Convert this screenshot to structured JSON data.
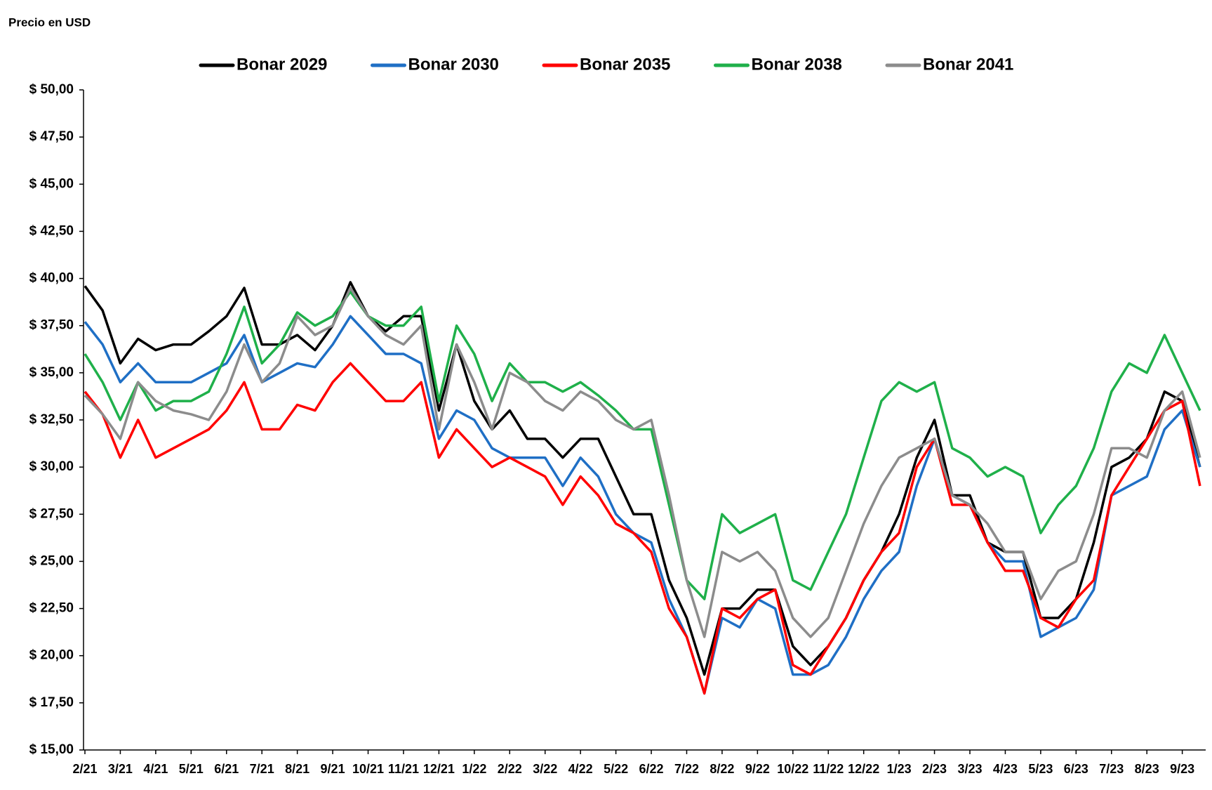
{
  "chart_data": {
    "type": "line",
    "ylabel": "Precio en USD",
    "categories": [
      "2/21",
      null,
      "3/21",
      null,
      "4/21",
      null,
      "5/21",
      null,
      "6/21",
      null,
      "7/21",
      null,
      "8/21",
      null,
      "9/21",
      null,
      "10/21",
      null,
      "11/21",
      null,
      "12/21",
      null,
      "1/22",
      null,
      "2/22",
      null,
      "3/22",
      null,
      "4/22",
      null,
      "5/22",
      null,
      "6/22",
      null,
      "7/22",
      null,
      "8/22",
      null,
      "9/22",
      null,
      "10/22",
      null,
      "11/22",
      null,
      "12/22",
      null,
      "1/23",
      null,
      "2/23",
      null,
      "3/23",
      null,
      "4/23",
      null,
      "5/23",
      null,
      "6/23",
      null,
      "7/23",
      null,
      "8/23",
      null,
      "9/23",
      null
    ],
    "series": [
      {
        "name": "Bonar 2029",
        "color": "#000000",
        "values": [
          39.6,
          38.3,
          35.5,
          36.8,
          36.2,
          36.5,
          36.5,
          37.2,
          38,
          39.5,
          36.5,
          36.5,
          37,
          36.2,
          37.5,
          39.8,
          38,
          37.2,
          38,
          38,
          33,
          36.5,
          33.5,
          32,
          33,
          31.5,
          31.5,
          30.5,
          31.5,
          31.5,
          29.5,
          27.5,
          27.5,
          24,
          22,
          19,
          22.5,
          22.5,
          23.5,
          23.5,
          20.5,
          19.5,
          20.5,
          22,
          24,
          25.5,
          27.5,
          30.5,
          32.5,
          28.5,
          28.5,
          26,
          25.5,
          25.5,
          22,
          22,
          23,
          26,
          30,
          30.5,
          31.5,
          34,
          33.5,
          30
        ]
      },
      {
        "name": "Bonar 2030",
        "color": "#1f6fc5",
        "values": [
          37.7,
          36.5,
          34.5,
          35.5,
          34.5,
          34.5,
          34.5,
          35,
          35.5,
          37,
          34.5,
          35,
          35.5,
          35.3,
          36.5,
          38,
          37,
          36,
          36,
          35.5,
          31.5,
          33,
          32.5,
          31,
          30.5,
          30.5,
          30.5,
          29,
          30.5,
          29.5,
          27.5,
          26.5,
          26,
          23,
          21,
          18,
          22,
          21.5,
          23,
          22.5,
          19,
          19,
          19.5,
          21,
          23,
          24.5,
          25.5,
          29,
          31.5,
          28.5,
          28,
          26,
          25,
          25,
          21,
          21.5,
          22,
          23.5,
          28.5,
          29,
          29.5,
          32,
          33,
          30
        ]
      },
      {
        "name": "Bonar 2035",
        "color": "#ff0000",
        "values": [
          34,
          32.8,
          30.5,
          32.5,
          30.5,
          31,
          31.5,
          32,
          33,
          34.5,
          32,
          32,
          33.3,
          33,
          34.5,
          35.5,
          34.5,
          33.5,
          33.5,
          34.5,
          30.5,
          32,
          31,
          30,
          30.5,
          30,
          29.5,
          28,
          29.5,
          28.5,
          27,
          26.5,
          25.5,
          22.5,
          21,
          18,
          22.5,
          22,
          23,
          23.5,
          19.5,
          19,
          20.5,
          22,
          24,
          25.5,
          26.5,
          30,
          31.5,
          28,
          28,
          26,
          24.5,
          24.5,
          22,
          21.5,
          23,
          24,
          28.5,
          30,
          31.5,
          33,
          33.5,
          29
        ]
      },
      {
        "name": "Bonar 2038",
        "color": "#1fb04a",
        "values": [
          36,
          34.5,
          32.5,
          34.5,
          33,
          33.5,
          33.5,
          34,
          36,
          38.5,
          35.5,
          36.5,
          38.2,
          37.5,
          38,
          39.3,
          38,
          37.5,
          37.5,
          38.5,
          33.5,
          37.5,
          36,
          33.5,
          35.5,
          34.5,
          34.5,
          34,
          34.5,
          33.8,
          33,
          32,
          32,
          28,
          24,
          23,
          27.5,
          26.5,
          27,
          27.5,
          24,
          23.5,
          25.5,
          27.5,
          30.5,
          33.5,
          34.5,
          34,
          34.5,
          31,
          30.5,
          29.5,
          30,
          29.5,
          26.5,
          28,
          29,
          31,
          34,
          35.5,
          35,
          37,
          35,
          33
        ]
      },
      {
        "name": "Bonar 2041",
        "color": "#8c8c8c",
        "values": [
          33.8,
          32.8,
          31.5,
          34.5,
          33.5,
          33,
          32.8,
          32.5,
          34,
          36.5,
          34.5,
          35.5,
          38,
          37,
          37.5,
          39.5,
          38,
          37,
          36.5,
          37.5,
          32,
          36.5,
          34.5,
          32,
          35,
          34.5,
          33.5,
          33,
          34,
          33.5,
          32.5,
          32,
          32.5,
          28.5,
          24,
          21,
          25.5,
          25,
          25.5,
          24.5,
          22,
          21,
          22,
          24.5,
          27,
          29,
          30.5,
          31,
          31.5,
          28.5,
          28,
          27,
          25.5,
          25.5,
          23,
          24.5,
          25,
          27.5,
          31,
          31,
          30.5,
          33,
          34,
          30.5
        ]
      }
    ],
    "ylim": [
      15,
      50
    ],
    "yticks": [
      {
        "value": 15,
        "label": "$ 15,00"
      },
      {
        "value": 17.5,
        "label": "$ 17,50"
      },
      {
        "value": 20,
        "label": "$ 20,00"
      },
      {
        "value": 22.5,
        "label": "$ 22,50"
      },
      {
        "value": 25,
        "label": "$ 25,00"
      },
      {
        "value": 27.5,
        "label": "$ 27,50"
      },
      {
        "value": 30,
        "label": "$ 30,00"
      },
      {
        "value": 32.5,
        "label": "$ 32,50"
      },
      {
        "value": 35,
        "label": "$ 35,00"
      },
      {
        "value": 37.5,
        "label": "$ 37,50"
      },
      {
        "value": 40,
        "label": "$ 40,00"
      },
      {
        "value": 42.5,
        "label": "$ 42,50"
      },
      {
        "value": 45,
        "label": "$ 45,00"
      },
      {
        "value": 47.5,
        "label": "$ 47,50"
      },
      {
        "value": 50,
        "label": "$ 50,00"
      }
    ],
    "grid": false,
    "legend": "top"
  }
}
